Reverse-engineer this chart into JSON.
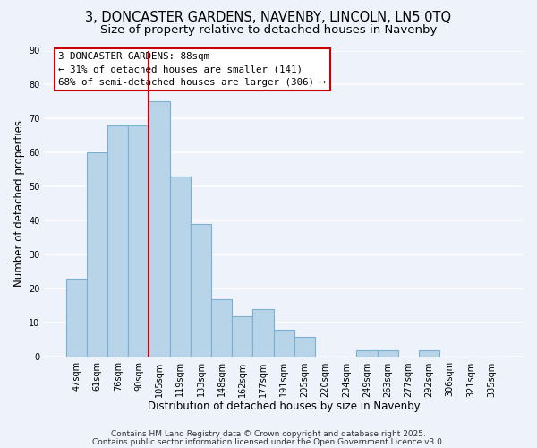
{
  "title": "3, DONCASTER GARDENS, NAVENBY, LINCOLN, LN5 0TQ",
  "subtitle": "Size of property relative to detached houses in Navenby",
  "xlabel": "Distribution of detached houses by size in Navenby",
  "ylabel": "Number of detached properties",
  "categories": [
    "47sqm",
    "61sqm",
    "76sqm",
    "90sqm",
    "105sqm",
    "119sqm",
    "133sqm",
    "148sqm",
    "162sqm",
    "177sqm",
    "191sqm",
    "205sqm",
    "220sqm",
    "234sqm",
    "249sqm",
    "263sqm",
    "277sqm",
    "292sqm",
    "306sqm",
    "321sqm",
    "335sqm"
  ],
  "values": [
    23,
    60,
    68,
    68,
    75,
    53,
    39,
    17,
    12,
    14,
    8,
    6,
    0,
    0,
    2,
    2,
    0,
    2,
    0,
    0,
    0
  ],
  "bar_color": "#b8d4e8",
  "bar_edge_color": "#7bafd4",
  "reference_line_color": "#cc0000",
  "reference_line_x": 3.5,
  "ylim": [
    0,
    90
  ],
  "yticks": [
    0,
    10,
    20,
    30,
    40,
    50,
    60,
    70,
    80,
    90
  ],
  "annotation_text": "3 DONCASTER GARDENS: 88sqm\n← 31% of detached houses are smaller (141)\n68% of semi-detached houses are larger (306) →",
  "footnote1": "Contains HM Land Registry data © Crown copyright and database right 2025.",
  "footnote2": "Contains public sector information licensed under the Open Government Licence v3.0.",
  "bg_color": "#eef2fa",
  "grid_color": "#ffffff",
  "title_fontsize": 10.5,
  "subtitle_fontsize": 9.5,
  "axis_label_fontsize": 8.5,
  "tick_fontsize": 7,
  "footnote_fontsize": 6.5
}
